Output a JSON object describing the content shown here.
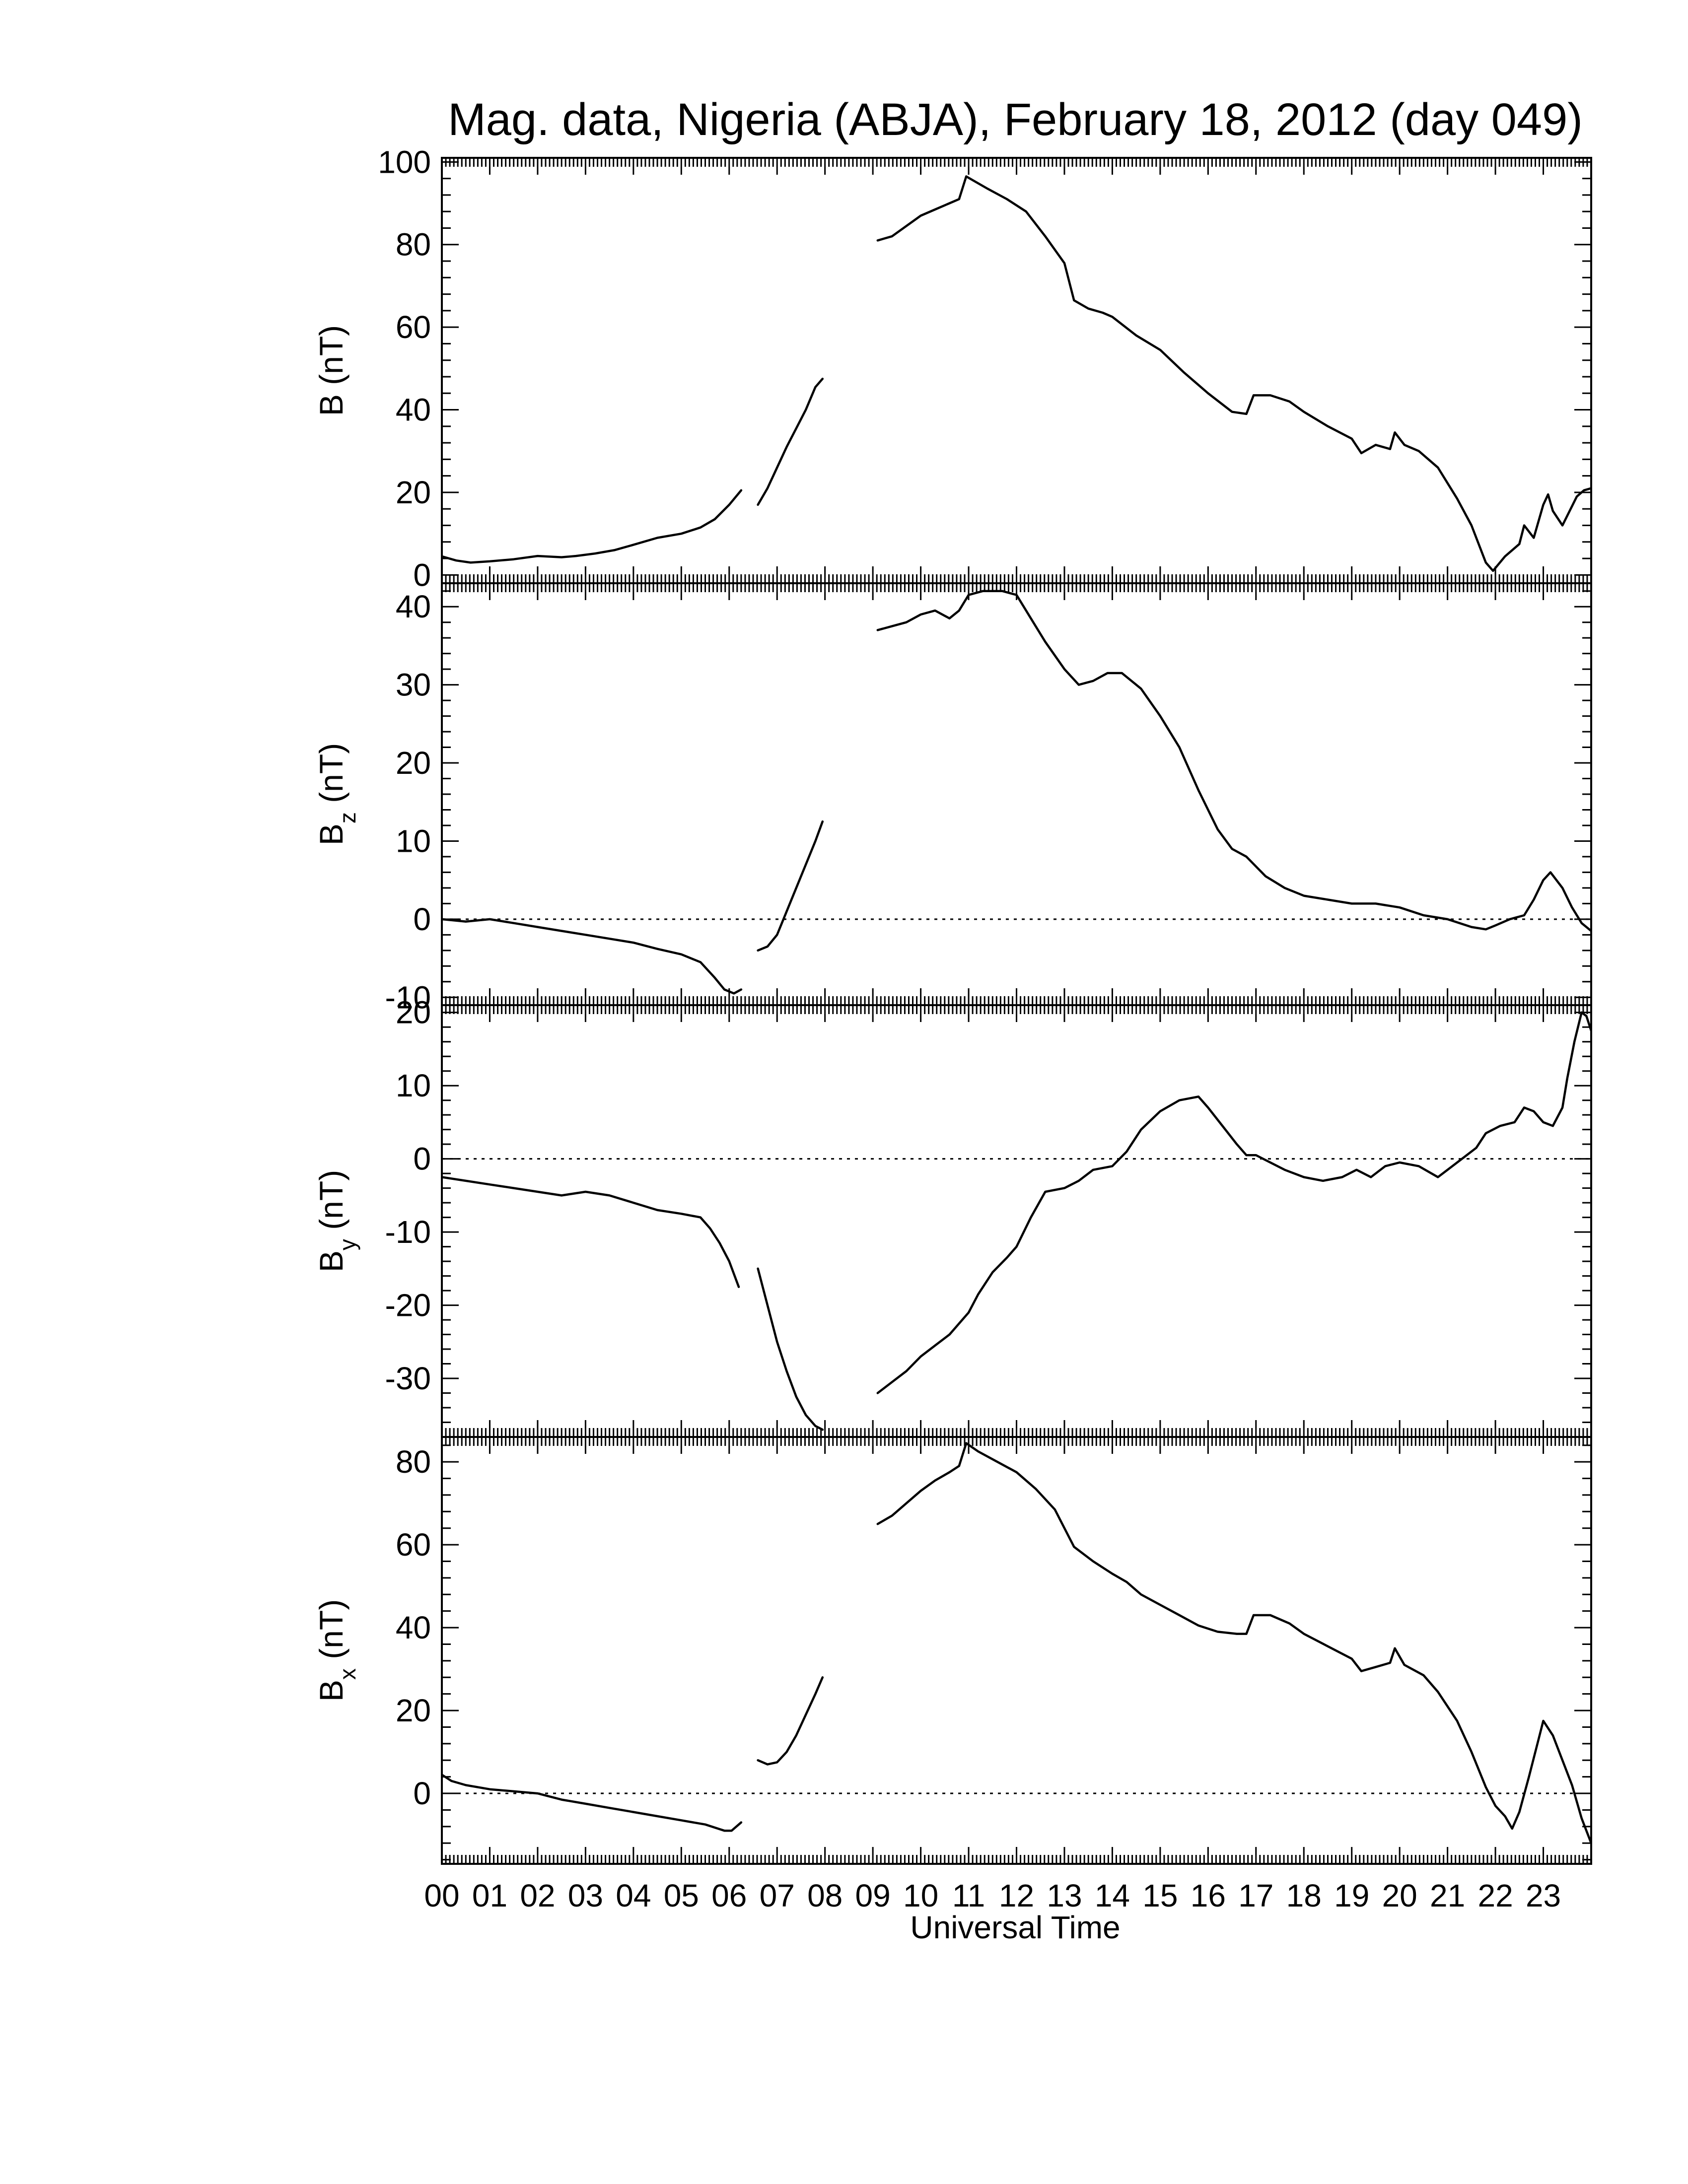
{
  "figure": {
    "title": "Mag. data, Nigeria (ABJA), February 18, 2012 (day 049)",
    "xlabel": "Universal Time",
    "x_tick_labels": [
      "00",
      "01",
      "02",
      "03",
      "04",
      "05",
      "06",
      "07",
      "08",
      "09",
      "10",
      "11",
      "12",
      "13",
      "14",
      "15",
      "16",
      "17",
      "18",
      "19",
      "20",
      "21",
      "22",
      "23"
    ]
  },
  "chart_data": [
    {
      "type": "line",
      "panel": "B",
      "ylabel": "B (nT)",
      "ylim": [
        -2,
        101
      ],
      "yticks": [
        0,
        20,
        40,
        60,
        80,
        100
      ],
      "zero_line": false,
      "xlim": [
        0,
        24
      ],
      "segments": [
        [
          [
            0.0,
            4.5
          ],
          [
            0.3,
            3.5
          ],
          [
            0.6,
            3.0
          ],
          [
            1.0,
            3.3
          ],
          [
            1.5,
            3.8
          ],
          [
            2.0,
            4.6
          ],
          [
            2.5,
            4.3
          ],
          [
            2.8,
            4.6
          ],
          [
            3.2,
            5.2
          ],
          [
            3.6,
            6.0
          ],
          [
            4.0,
            7.3
          ],
          [
            4.5,
            9.0
          ],
          [
            5.0,
            10.0
          ],
          [
            5.4,
            11.5
          ],
          [
            5.7,
            13.5
          ],
          [
            6.0,
            17.0
          ],
          [
            6.25,
            20.5
          ]
        ],
        [
          [
            6.6,
            17.0
          ],
          [
            6.8,
            21.0
          ],
          [
            7.0,
            26.0
          ],
          [
            7.2,
            31.0
          ],
          [
            7.4,
            35.5
          ],
          [
            7.6,
            40.0
          ],
          [
            7.8,
            45.5
          ],
          [
            7.95,
            47.5
          ]
        ],
        [
          [
            9.1,
            81.0
          ],
          [
            9.4,
            82.0
          ],
          [
            9.7,
            84.5
          ],
          [
            10.0,
            87.0
          ],
          [
            10.3,
            88.5
          ],
          [
            10.6,
            90.0
          ],
          [
            10.8,
            91.0
          ],
          [
            10.95,
            96.5
          ],
          [
            11.1,
            95.5
          ],
          [
            11.4,
            93.5
          ],
          [
            11.8,
            91.0
          ],
          [
            12.2,
            88.0
          ],
          [
            12.6,
            82.0
          ],
          [
            13.0,
            75.5
          ],
          [
            13.2,
            66.5
          ],
          [
            13.5,
            64.5
          ],
          [
            13.8,
            63.5
          ],
          [
            14.0,
            62.5
          ],
          [
            14.5,
            58.0
          ],
          [
            15.0,
            54.5
          ],
          [
            15.5,
            49.0
          ],
          [
            16.0,
            44.0
          ],
          [
            16.5,
            39.5
          ],
          [
            16.8,
            39.0
          ],
          [
            16.95,
            43.5
          ],
          [
            17.3,
            43.5
          ],
          [
            17.7,
            42.0
          ],
          [
            18.0,
            39.5
          ],
          [
            18.5,
            36.0
          ],
          [
            19.0,
            33.0
          ],
          [
            19.2,
            29.5
          ],
          [
            19.5,
            31.5
          ],
          [
            19.8,
            30.5
          ],
          [
            19.9,
            34.5
          ],
          [
            20.1,
            31.5
          ],
          [
            20.4,
            30.0
          ],
          [
            20.8,
            26.0
          ],
          [
            21.2,
            18.5
          ],
          [
            21.5,
            12.0
          ],
          [
            21.8,
            3.0
          ],
          [
            21.95,
            1.0
          ],
          [
            22.2,
            4.5
          ],
          [
            22.5,
            7.5
          ],
          [
            22.6,
            12.0
          ],
          [
            22.8,
            9.0
          ],
          [
            23.0,
            17.0
          ],
          [
            23.1,
            19.5
          ],
          [
            23.2,
            15.5
          ],
          [
            23.4,
            12.0
          ],
          [
            23.7,
            19.0
          ],
          [
            23.85,
            20.5
          ],
          [
            24.0,
            21.0
          ]
        ]
      ]
    },
    {
      "type": "line",
      "panel": "Bz",
      "ylabel": "B_z (nT)",
      "ylim": [
        -11,
        43
      ],
      "yticks": [
        -10,
        0,
        10,
        20,
        30,
        40
      ],
      "zero_line": true,
      "xlim": [
        0,
        24
      ],
      "segments": [
        [
          [
            0.0,
            0.0
          ],
          [
            0.5,
            -0.3
          ],
          [
            1.0,
            0.0
          ],
          [
            1.5,
            -0.5
          ],
          [
            2.0,
            -1.0
          ],
          [
            2.5,
            -1.5
          ],
          [
            3.0,
            -2.0
          ],
          [
            3.5,
            -2.5
          ],
          [
            4.0,
            -3.0
          ],
          [
            4.5,
            -3.8
          ],
          [
            5.0,
            -4.5
          ],
          [
            5.4,
            -5.5
          ],
          [
            5.7,
            -7.5
          ],
          [
            5.9,
            -9.0
          ],
          [
            6.1,
            -9.5
          ],
          [
            6.25,
            -9.0
          ]
        ],
        [
          [
            6.6,
            -4.0
          ],
          [
            6.8,
            -3.5
          ],
          [
            7.0,
            -2.0
          ],
          [
            7.2,
            1.0
          ],
          [
            7.4,
            4.0
          ],
          [
            7.6,
            7.0
          ],
          [
            7.8,
            10.0
          ],
          [
            7.95,
            12.5
          ]
        ],
        [
          [
            9.1,
            37.0
          ],
          [
            9.4,
            37.5
          ],
          [
            9.7,
            38.0
          ],
          [
            10.0,
            39.0
          ],
          [
            10.3,
            39.5
          ],
          [
            10.6,
            38.5
          ],
          [
            10.8,
            39.5
          ],
          [
            11.0,
            41.5
          ],
          [
            11.3,
            42.0
          ],
          [
            11.7,
            42.0
          ],
          [
            12.0,
            41.5
          ],
          [
            12.3,
            38.5
          ],
          [
            12.6,
            35.5
          ],
          [
            13.0,
            32.0
          ],
          [
            13.3,
            30.0
          ],
          [
            13.6,
            30.5
          ],
          [
            13.9,
            31.5
          ],
          [
            14.2,
            31.5
          ],
          [
            14.6,
            29.5
          ],
          [
            15.0,
            26.0
          ],
          [
            15.4,
            22.0
          ],
          [
            15.8,
            16.5
          ],
          [
            16.2,
            11.5
          ],
          [
            16.5,
            9.0
          ],
          [
            16.8,
            8.0
          ],
          [
            17.2,
            5.5
          ],
          [
            17.6,
            4.0
          ],
          [
            18.0,
            3.0
          ],
          [
            18.5,
            2.5
          ],
          [
            19.0,
            2.0
          ],
          [
            19.5,
            2.0
          ],
          [
            20.0,
            1.5
          ],
          [
            20.5,
            0.5
          ],
          [
            21.0,
            0.0
          ],
          [
            21.5,
            -1.0
          ],
          [
            21.8,
            -1.3
          ],
          [
            22.0,
            -0.8
          ],
          [
            22.3,
            0.0
          ],
          [
            22.6,
            0.5
          ],
          [
            22.8,
            2.5
          ],
          [
            23.0,
            5.0
          ],
          [
            23.15,
            6.0
          ],
          [
            23.4,
            4.0
          ],
          [
            23.6,
            1.5
          ],
          [
            23.8,
            -0.5
          ],
          [
            24.0,
            -1.5
          ]
        ]
      ]
    },
    {
      "type": "line",
      "panel": "By",
      "ylabel": "B_y (nT)",
      "ylim": [
        -38,
        21
      ],
      "yticks": [
        -30,
        -20,
        -10,
        0,
        10,
        20
      ],
      "zero_line": true,
      "xlim": [
        0,
        24
      ],
      "segments": [
        [
          [
            0.0,
            -2.5
          ],
          [
            0.5,
            -3.0
          ],
          [
            1.0,
            -3.5
          ],
          [
            1.5,
            -4.0
          ],
          [
            2.0,
            -4.5
          ],
          [
            2.5,
            -5.0
          ],
          [
            3.0,
            -4.5
          ],
          [
            3.5,
            -5.0
          ],
          [
            4.0,
            -6.0
          ],
          [
            4.5,
            -7.0
          ],
          [
            5.0,
            -7.5
          ],
          [
            5.4,
            -8.0
          ],
          [
            5.6,
            -9.5
          ],
          [
            5.8,
            -11.5
          ],
          [
            6.0,
            -14.0
          ],
          [
            6.2,
            -17.5
          ]
        ],
        [
          [
            6.6,
            -15.0
          ],
          [
            6.8,
            -20.0
          ],
          [
            7.0,
            -25.0
          ],
          [
            7.2,
            -29.0
          ],
          [
            7.4,
            -32.5
          ],
          [
            7.6,
            -35.0
          ],
          [
            7.8,
            -36.5
          ],
          [
            7.95,
            -37.0
          ]
        ],
        [
          [
            9.1,
            -32.0
          ],
          [
            9.4,
            -30.5
          ],
          [
            9.7,
            -29.0
          ],
          [
            10.0,
            -27.0
          ],
          [
            10.3,
            -25.5
          ],
          [
            10.6,
            -24.0
          ],
          [
            10.8,
            -22.5
          ],
          [
            11.0,
            -21.0
          ],
          [
            11.2,
            -18.5
          ],
          [
            11.5,
            -15.5
          ],
          [
            11.8,
            -13.5
          ],
          [
            12.0,
            -12.0
          ],
          [
            12.3,
            -8.0
          ],
          [
            12.6,
            -4.5
          ],
          [
            13.0,
            -4.0
          ],
          [
            13.3,
            -3.0
          ],
          [
            13.6,
            -1.5
          ],
          [
            14.0,
            -1.0
          ],
          [
            14.3,
            1.0
          ],
          [
            14.6,
            4.0
          ],
          [
            15.0,
            6.5
          ],
          [
            15.4,
            8.0
          ],
          [
            15.8,
            8.5
          ],
          [
            16.0,
            7.0
          ],
          [
            16.3,
            4.5
          ],
          [
            16.6,
            2.0
          ],
          [
            16.8,
            0.5
          ],
          [
            17.0,
            0.5
          ],
          [
            17.3,
            -0.5
          ],
          [
            17.6,
            -1.5
          ],
          [
            18.0,
            -2.5
          ],
          [
            18.4,
            -3.0
          ],
          [
            18.8,
            -2.5
          ],
          [
            19.1,
            -1.5
          ],
          [
            19.4,
            -2.5
          ],
          [
            19.7,
            -1.0
          ],
          [
            20.0,
            -0.5
          ],
          [
            20.4,
            -1.0
          ],
          [
            20.8,
            -2.5
          ],
          [
            21.0,
            -1.5
          ],
          [
            21.3,
            0.0
          ],
          [
            21.6,
            1.5
          ],
          [
            21.8,
            3.5
          ],
          [
            22.1,
            4.5
          ],
          [
            22.4,
            5.0
          ],
          [
            22.6,
            7.0
          ],
          [
            22.8,
            6.5
          ],
          [
            23.0,
            5.0
          ],
          [
            23.2,
            4.5
          ],
          [
            23.4,
            7.0
          ],
          [
            23.5,
            11.0
          ],
          [
            23.65,
            16.0
          ],
          [
            23.8,
            20.0
          ],
          [
            23.9,
            19.5
          ],
          [
            24.0,
            17.5
          ]
        ]
      ]
    },
    {
      "type": "line",
      "panel": "Bx",
      "ylabel": "B_x (nT)",
      "ylim": [
        -17,
        86
      ],
      "yticks": [
        0,
        20,
        40,
        60,
        80
      ],
      "zero_line": true,
      "xlim": [
        0,
        24
      ],
      "segments": [
        [
          [
            0.0,
            4.5
          ],
          [
            0.2,
            3.0
          ],
          [
            0.5,
            2.0
          ],
          [
            1.0,
            1.0
          ],
          [
            1.5,
            0.5
          ],
          [
            2.0,
            0.0
          ],
          [
            2.5,
            -1.5
          ],
          [
            3.0,
            -2.5
          ],
          [
            3.5,
            -3.5
          ],
          [
            4.0,
            -4.5
          ],
          [
            4.5,
            -5.5
          ],
          [
            5.0,
            -6.5
          ],
          [
            5.5,
            -7.5
          ],
          [
            5.9,
            -9.0
          ],
          [
            6.05,
            -9.0
          ],
          [
            6.25,
            -7.0
          ]
        ],
        [
          [
            6.6,
            8.0
          ],
          [
            6.8,
            7.0
          ],
          [
            7.0,
            7.5
          ],
          [
            7.2,
            10.0
          ],
          [
            7.4,
            14.0
          ],
          [
            7.6,
            19.0
          ],
          [
            7.8,
            24.0
          ],
          [
            7.95,
            28.0
          ]
        ],
        [
          [
            9.1,
            65.0
          ],
          [
            9.4,
            67.0
          ],
          [
            9.7,
            70.0
          ],
          [
            10.0,
            73.0
          ],
          [
            10.3,
            75.5
          ],
          [
            10.6,
            77.5
          ],
          [
            10.8,
            79.0
          ],
          [
            10.95,
            84.5
          ],
          [
            11.2,
            82.5
          ],
          [
            11.6,
            80.0
          ],
          [
            12.0,
            77.5
          ],
          [
            12.4,
            73.5
          ],
          [
            12.8,
            68.5
          ],
          [
            13.2,
            59.5
          ],
          [
            13.6,
            56.0
          ],
          [
            14.0,
            53.0
          ],
          [
            14.3,
            51.0
          ],
          [
            14.6,
            48.0
          ],
          [
            15.0,
            45.5
          ],
          [
            15.4,
            43.0
          ],
          [
            15.8,
            40.5
          ],
          [
            16.2,
            39.0
          ],
          [
            16.6,
            38.5
          ],
          [
            16.8,
            38.5
          ],
          [
            16.95,
            43.0
          ],
          [
            17.3,
            43.0
          ],
          [
            17.7,
            41.0
          ],
          [
            18.0,
            38.5
          ],
          [
            18.5,
            35.5
          ],
          [
            19.0,
            32.5
          ],
          [
            19.2,
            29.5
          ],
          [
            19.5,
            30.5
          ],
          [
            19.8,
            31.5
          ],
          [
            19.9,
            35.0
          ],
          [
            20.1,
            31.0
          ],
          [
            20.5,
            28.5
          ],
          [
            20.8,
            24.5
          ],
          [
            21.2,
            17.5
          ],
          [
            21.5,
            10.0
          ],
          [
            21.8,
            1.5
          ],
          [
            22.0,
            -3.0
          ],
          [
            22.2,
            -5.5
          ],
          [
            22.35,
            -8.5
          ],
          [
            22.5,
            -4.5
          ],
          [
            22.7,
            4.0
          ],
          [
            22.9,
            13.0
          ],
          [
            23.0,
            17.5
          ],
          [
            23.2,
            14.0
          ],
          [
            23.4,
            8.0
          ],
          [
            23.6,
            2.0
          ],
          [
            23.8,
            -6.0
          ],
          [
            24.0,
            -12.0
          ]
        ]
      ]
    }
  ]
}
